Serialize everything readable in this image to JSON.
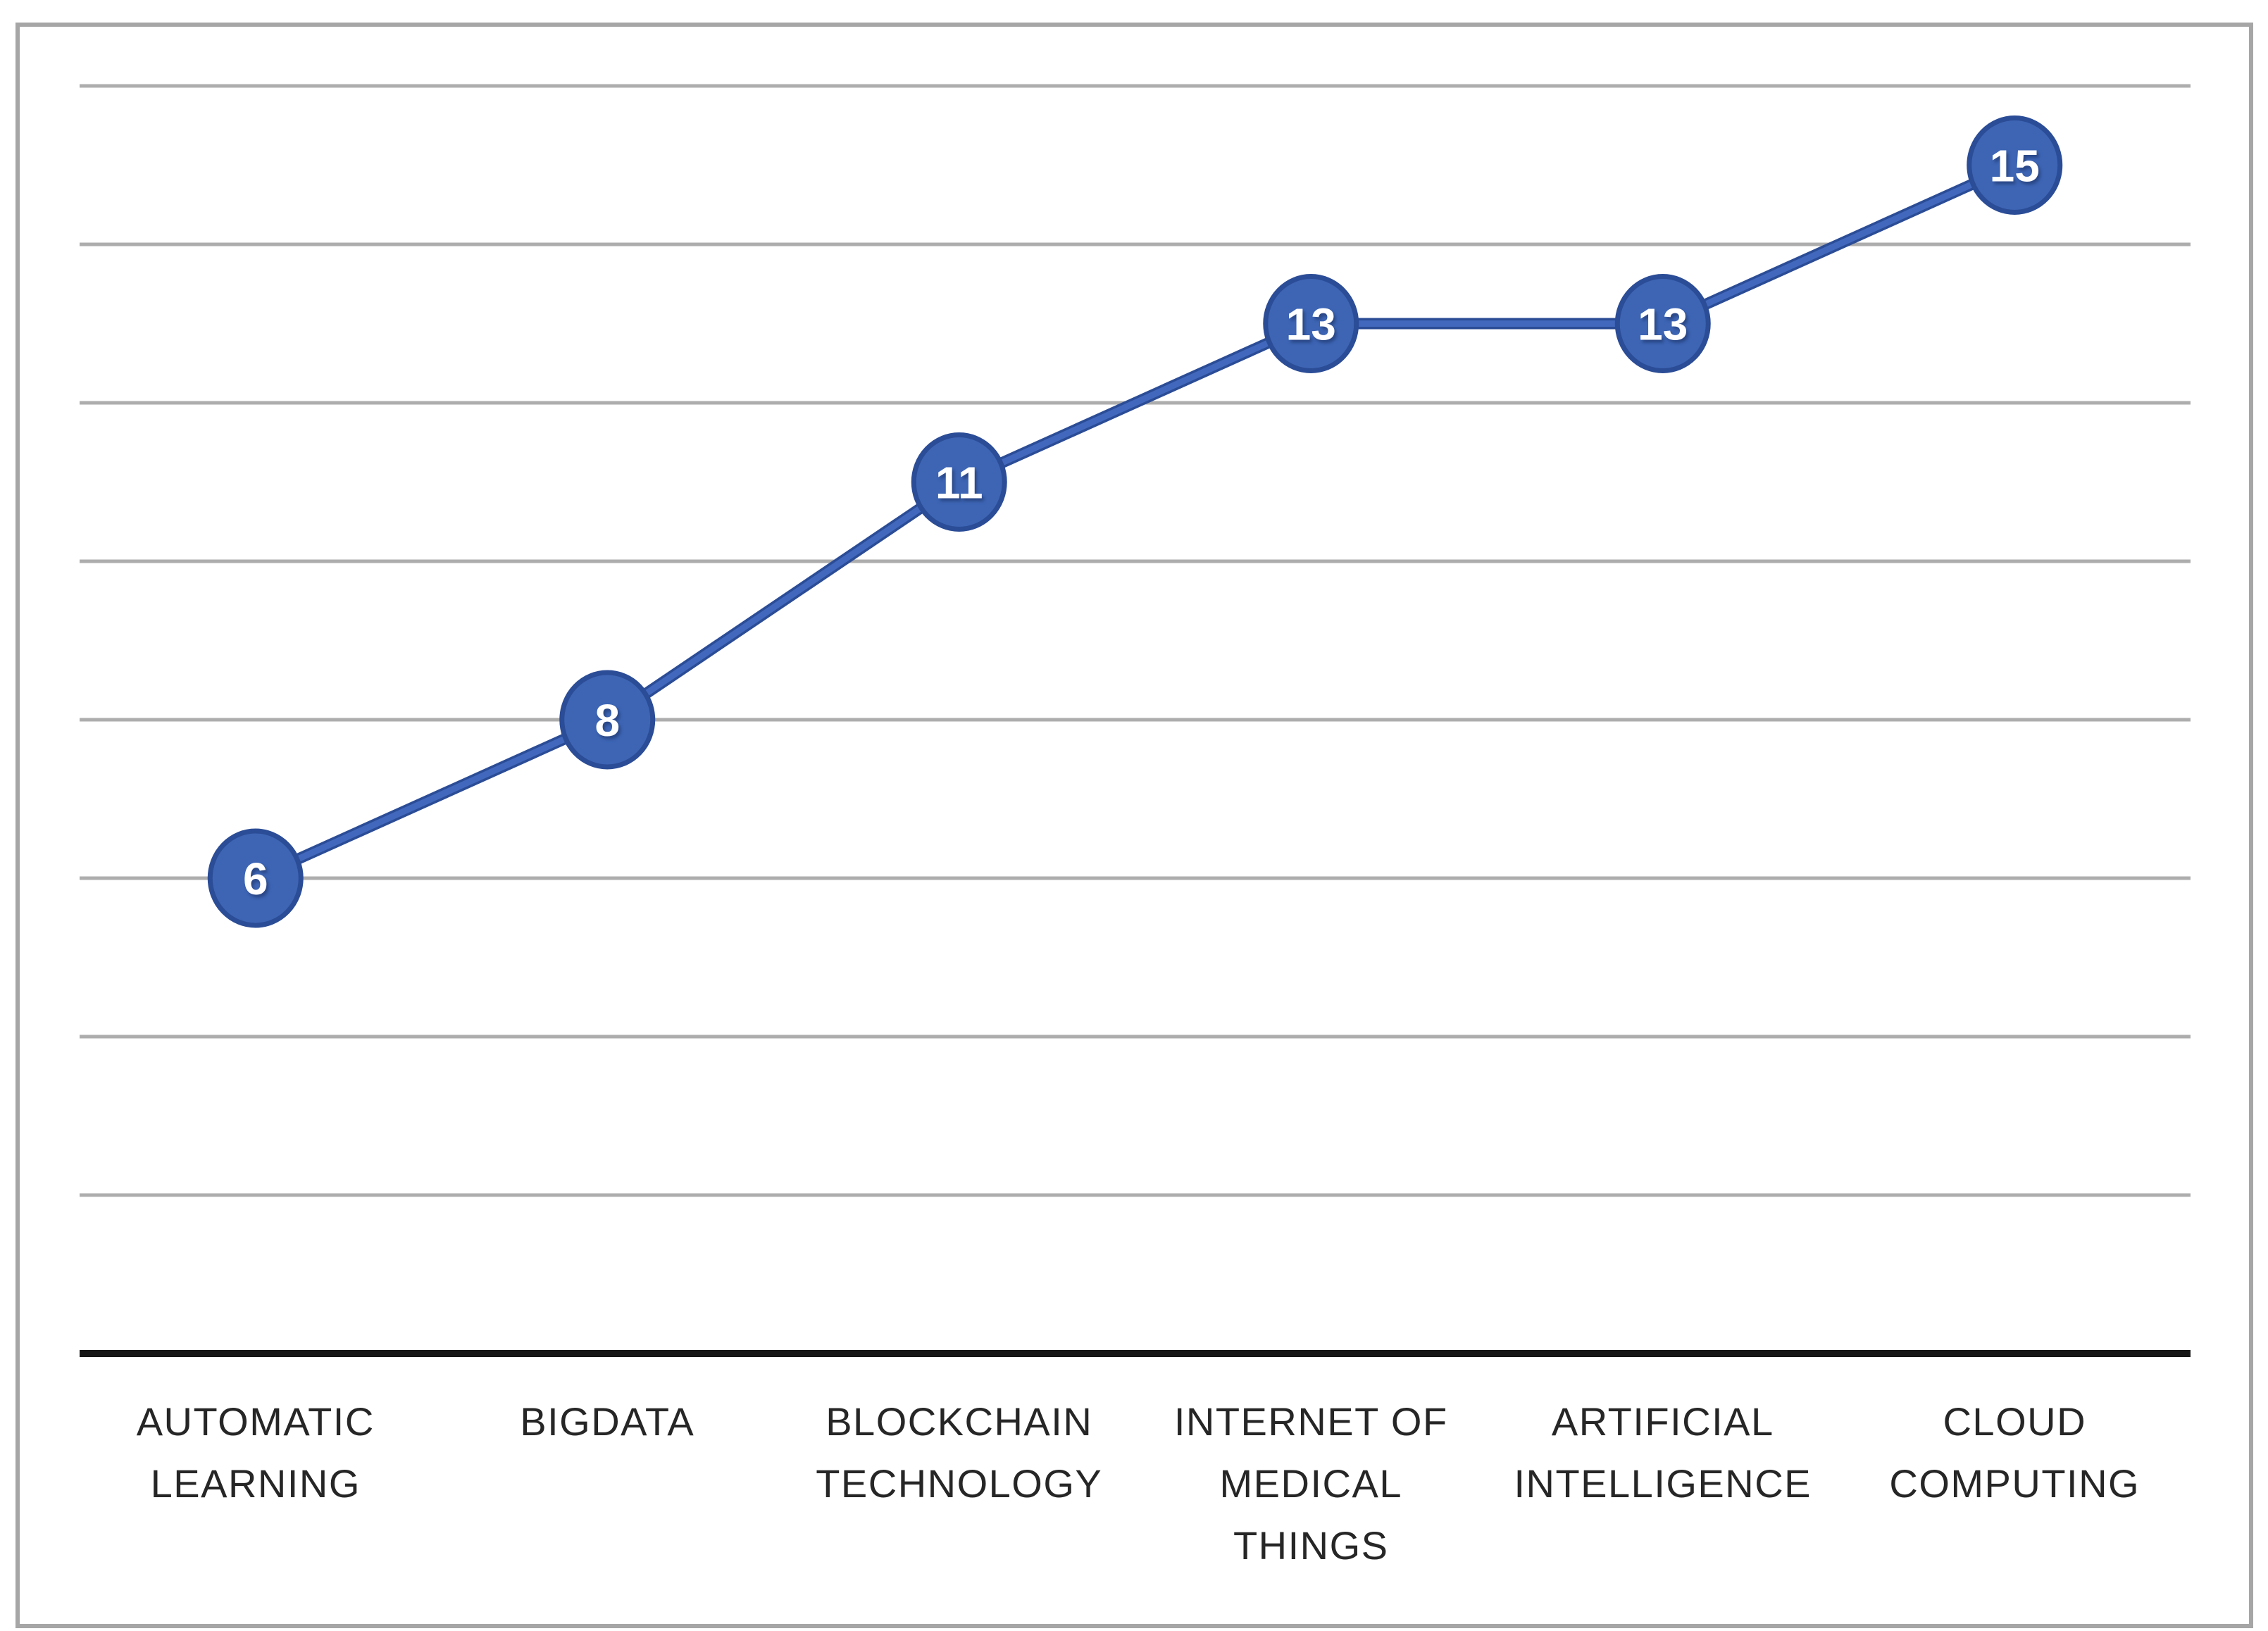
{
  "figure": {
    "background": "#FFFFFF",
    "border_color": "#A6A6A6"
  },
  "chart_data": {
    "type": "line",
    "title": "",
    "categories": [
      "AUTOMATIC LEARNING",
      "BIGDATA",
      "BLOCKCHAIN TECHNOLOGY",
      "INTERNET OF MEDICAL THINGS",
      "ARTIFICIAL INTELLIGENCE",
      "CLOUD COMPUTING"
    ],
    "category_label_lines": [
      [
        "AUTOMATIC",
        "LEARNING"
      ],
      [
        "BIGDATA"
      ],
      [
        "BLOCKCHAIN",
        "TECHNOLOGY"
      ],
      [
        "INTERNET OF",
        "MEDICAL",
        "THINGS"
      ],
      [
        "ARTIFICIAL",
        "INTELLIGENCE"
      ],
      [
        "CLOUD",
        "COMPUTING"
      ]
    ],
    "series": [
      {
        "name": "",
        "values": [
          6,
          8,
          11,
          13,
          13,
          15
        ]
      }
    ],
    "data_labels_visible": true,
    "ylim": [
      0,
      16
    ],
    "grid_step": 2,
    "grid_visible": true,
    "y_axis_labels_visible": false,
    "legend": "none",
    "colors": {
      "line_core": "#4168BC",
      "line_outline": "#2B4C96",
      "marker_fill": "#3D65B4",
      "marker_stroke": "#2B4C96",
      "marker_label_text": "#FFFFFF",
      "gridline": "#ADADAD",
      "axis_line": "#161616",
      "category_label_text": "#262626"
    }
  }
}
